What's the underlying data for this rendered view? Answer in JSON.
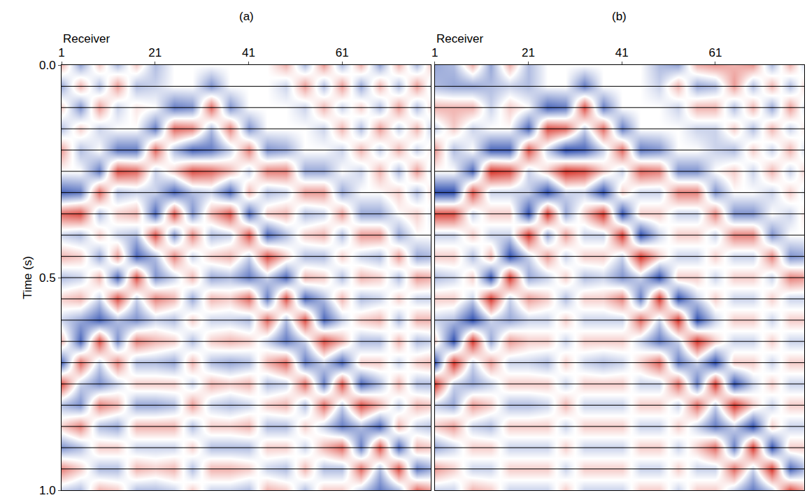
{
  "chart_data": [
    {
      "type": "heatmap",
      "title": "(a)",
      "x_label": "Receiver",
      "y_label": "Time (s)",
      "x": [
        1,
        5,
        9,
        13,
        17,
        21,
        25,
        29,
        33,
        37,
        41,
        45,
        49,
        53,
        57,
        61,
        65,
        69,
        73,
        77,
        81
      ],
      "y": [
        0,
        0.05,
        0.1,
        0.15,
        0.2,
        0.25,
        0.3,
        0.35,
        0.4,
        0.45,
        0.5,
        0.55,
        0.6,
        0.65,
        0.7,
        0.75,
        0.8,
        0.85,
        0.9,
        0.95,
        1
      ],
      "z": [
        [
          3,
          -4,
          2,
          -3,
          4,
          0,
          -7,
          6,
          -2,
          3,
          -3,
          2,
          -2,
          3,
          -7,
          7,
          -3,
          2,
          -5,
          5,
          -2
        ],
        [
          -4,
          3,
          -5,
          2,
          -3,
          0,
          -6,
          7,
          -3,
          2,
          -2,
          3,
          -4,
          -7,
          6,
          -2,
          -5,
          5,
          -3,
          2,
          -3
        ],
        [
          2,
          -3,
          4,
          -2,
          0,
          -6,
          6,
          -3,
          2,
          -4,
          3,
          -2,
          -7,
          7,
          -2,
          -5,
          5,
          -3,
          2,
          -3,
          3
        ],
        [
          -3,
          4,
          -2,
          0,
          -6,
          7,
          -3,
          2,
          -2,
          4,
          -7,
          7,
          -3,
          -5,
          5,
          -2,
          3,
          -4,
          2,
          -3,
          2
        ],
        [
          2,
          -3,
          1,
          0,
          -6,
          6,
          -2,
          3,
          -3,
          -7,
          7,
          -2,
          -5,
          5,
          -3,
          2,
          -4,
          3,
          -2,
          3,
          -3
        ],
        [
          -3,
          -2,
          0,
          -6,
          6,
          -2,
          -2,
          -7,
          7,
          -3,
          -5,
          5,
          -2,
          3,
          -3,
          2,
          -4,
          3,
          -2,
          2,
          -3
        ],
        [
          0,
          0,
          -6,
          6,
          -3,
          2,
          -7,
          7,
          -5,
          5,
          -2,
          3,
          -3,
          2,
          -4,
          2,
          -3,
          3,
          -2,
          3,
          -2
        ],
        [
          0,
          0,
          -5,
          5,
          -7,
          7,
          -3,
          -5,
          5,
          -2,
          3,
          -4,
          2,
          -3,
          3,
          -2,
          4,
          -3,
          2,
          -3,
          2
        ],
        [
          0,
          -5,
          6,
          -3,
          -6,
          6,
          -2,
          3,
          -3,
          2,
          -4,
          3,
          -2,
          2,
          -3,
          3,
          -2,
          2,
          -3,
          3,
          -2
        ],
        [
          0,
          0,
          -5,
          5,
          -2,
          3,
          -7,
          7,
          -2,
          3,
          -3,
          2,
          -2,
          3,
          -4,
          2,
          -3,
          2,
          -3,
          3,
          -2
        ],
        [
          0,
          0,
          0,
          -5,
          5,
          -2,
          3,
          -7,
          7,
          -2,
          -6,
          6,
          -3,
          2,
          -3,
          3,
          -2,
          3,
          -3,
          2,
          -3
        ],
        [
          0,
          0,
          0,
          0,
          -5,
          5,
          -3,
          2,
          -7,
          7,
          -2,
          -6,
          6,
          -2,
          3,
          -3,
          2,
          -3,
          2,
          -2,
          3
        ],
        [
          3,
          -2,
          0,
          0,
          -4,
          5,
          -2,
          3,
          -3,
          2,
          -7,
          7,
          -3,
          -6,
          6,
          -2,
          3,
          -3,
          2,
          -3,
          2
        ],
        [
          -3,
          4,
          -2,
          0,
          0,
          -4,
          4,
          -3,
          2,
          -3,
          3,
          -7,
          7,
          -2,
          -6,
          6,
          -3,
          2,
          -2,
          3,
          -3
        ],
        [
          4,
          -3,
          3,
          -2,
          0,
          -4,
          4,
          -2,
          3,
          -3,
          2,
          -3,
          -7,
          7,
          -2,
          -6,
          6,
          -2,
          3,
          -3,
          2
        ],
        [
          -3,
          4,
          -2,
          3,
          -2,
          0,
          -4,
          4,
          -3,
          2,
          -3,
          3,
          -2,
          3,
          -7,
          7,
          -2,
          -6,
          6,
          -3,
          2
        ],
        [
          3,
          -4,
          2,
          -3,
          3,
          -2,
          0,
          -4,
          4,
          -2,
          3,
          -3,
          2,
          -3,
          2,
          -7,
          7,
          -3,
          -6,
          6,
          -2
        ],
        [
          -4,
          3,
          -3,
          4,
          -2,
          3,
          0,
          -4,
          4,
          -3,
          2,
          -2,
          3,
          -3,
          2,
          -3,
          3,
          -7,
          7,
          -3,
          -6
        ],
        [
          3,
          -3,
          4,
          -2,
          3,
          -3,
          2,
          0,
          -4,
          4,
          -3,
          2,
          -3,
          3,
          -2,
          3,
          -2,
          3,
          -7,
          7,
          -3
        ],
        [
          -3,
          4,
          -3,
          3,
          -2,
          4,
          -3,
          2,
          0,
          -4,
          4,
          -2,
          3,
          -3,
          2,
          -3,
          3,
          -2,
          3,
          -6,
          6
        ],
        [
          4,
          -3,
          3,
          -4,
          2,
          -3,
          3,
          -2,
          0,
          -3,
          3,
          -2,
          3,
          -2,
          3,
          -3,
          2,
          -3,
          2,
          -3,
          3
        ]
      ],
      "zlim": [
        -8,
        8
      ],
      "colors": [
        "#2f4fb0",
        "#ffffff",
        "#d9362c"
      ],
      "xlim": [
        1,
        80
      ],
      "xticks": [
        1,
        21,
        41,
        61
      ],
      "ylim": [
        1,
        0
      ],
      "yticks": [
        {
          "value": 0,
          "label": "0.0"
        },
        {
          "value": 0.5,
          "label": "0.5"
        },
        {
          "value": 1,
          "label": "1.0"
        }
      ],
      "grid": true
    },
    {
      "type": "heatmap",
      "title": "(b)",
      "x_label": "Receiver",
      "x": [
        1,
        5,
        9,
        13,
        17,
        21,
        25,
        29,
        33,
        37,
        41,
        45,
        49,
        53,
        57,
        61,
        65,
        69,
        73,
        77,
        81
      ],
      "y": [
        0,
        0.05,
        0.1,
        0.15,
        0.2,
        0.25,
        0.3,
        0.35,
        0.4,
        0.45,
        0.5,
        0.55,
        0.6,
        0.65,
        0.7,
        0.75,
        0.8,
        0.85,
        0.9,
        0.95,
        1
      ],
      "z": [
        [
          -4,
          -3,
          3,
          -2,
          4,
          0,
          -8,
          7,
          -2,
          2,
          -3,
          2,
          -2,
          2,
          -8,
          8,
          -2,
          2,
          -4,
          4,
          -2
        ],
        [
          -3,
          -4,
          3,
          2,
          -3,
          0,
          -8,
          7,
          -2,
          2,
          -2,
          2,
          -3,
          -8,
          8,
          -2,
          -4,
          4,
          -2,
          2,
          -2
        ],
        [
          3,
          -4,
          3,
          -2,
          0,
          -7,
          7,
          -2,
          2,
          -3,
          2,
          -2,
          -8,
          8,
          -2,
          -4,
          4,
          -2,
          2,
          -2,
          3
        ],
        [
          -4,
          -3,
          -2,
          0,
          -7,
          8,
          -2,
          2,
          -2,
          3,
          -8,
          8,
          -2,
          -4,
          4,
          -2,
          2,
          -3,
          2,
          -2,
          2
        ],
        [
          3,
          -2,
          2,
          0,
          -7,
          7,
          -2,
          2,
          -2,
          -8,
          8,
          -2,
          -4,
          4,
          -2,
          2,
          -3,
          2,
          -2,
          2,
          -2
        ],
        [
          -3,
          -3,
          0,
          -7,
          7,
          -2,
          -2,
          -8,
          8,
          -2,
          -4,
          4,
          -2,
          2,
          -2,
          2,
          -3,
          2,
          -2,
          2,
          -2
        ],
        [
          0,
          0,
          -7,
          7,
          -2,
          2,
          -8,
          8,
          -4,
          4,
          -2,
          2,
          -2,
          2,
          -3,
          2,
          -2,
          2,
          -2,
          2,
          -2
        ],
        [
          0,
          0,
          -6,
          6,
          -8,
          8,
          -2,
          -4,
          4,
          -2,
          2,
          -3,
          2,
          -2,
          2,
          -2,
          3,
          -2,
          2,
          -2,
          2
        ],
        [
          0,
          -6,
          7,
          -2,
          -7,
          7,
          -2,
          2,
          -2,
          2,
          -3,
          2,
          -2,
          2,
          -2,
          2,
          -2,
          2,
          -2,
          2,
          -2
        ],
        [
          0,
          0,
          -6,
          6,
          -2,
          2,
          -8,
          8,
          -2,
          2,
          -2,
          2,
          -2,
          2,
          -3,
          2,
          -2,
          2,
          -2,
          2,
          -2
        ],
        [
          0,
          0,
          0,
          -6,
          6,
          -2,
          2,
          -8,
          8,
          -2,
          -5,
          5,
          -2,
          2,
          -2,
          2,
          -2,
          2,
          -2,
          2,
          -2
        ],
        [
          0,
          0,
          0,
          0,
          -6,
          6,
          -2,
          2,
          -8,
          8,
          -2,
          -6,
          6,
          -2,
          2,
          -2,
          2,
          -2,
          2,
          -2,
          2
        ],
        [
          -3,
          -2,
          0,
          0,
          -5,
          5,
          -2,
          2,
          -2,
          2,
          -8,
          8,
          -2,
          -6,
          6,
          -2,
          2,
          -2,
          2,
          -2,
          2
        ],
        [
          -4,
          3,
          -2,
          0,
          0,
          -5,
          5,
          -2,
          2,
          -2,
          2,
          -8,
          8,
          -2,
          -6,
          6,
          -2,
          2,
          -2,
          2,
          -2
        ],
        [
          3,
          -4,
          3,
          -2,
          0,
          -5,
          5,
          -2,
          2,
          -2,
          2,
          -2,
          -8,
          8,
          -2,
          -6,
          6,
          -2,
          2,
          -2,
          2
        ],
        [
          4,
          -3,
          3,
          -2,
          -2,
          0,
          -5,
          5,
          -2,
          2,
          -2,
          2,
          -2,
          2,
          -8,
          8,
          -2,
          -6,
          6,
          -2,
          2
        ],
        [
          3,
          4,
          -3,
          2,
          -3,
          2,
          0,
          -5,
          5,
          -2,
          2,
          -2,
          2,
          -2,
          2,
          -8,
          8,
          -2,
          -6,
          6,
          -2
        ],
        [
          4,
          -3,
          3,
          -3,
          2,
          -2,
          0,
          -5,
          5,
          -2,
          2,
          -2,
          2,
          -2,
          2,
          -2,
          2,
          -8,
          8,
          -2,
          -6
        ],
        [
          -3,
          3,
          -4,
          3,
          -2,
          3,
          -2,
          0,
          -5,
          5,
          -2,
          2,
          -2,
          2,
          -2,
          2,
          -2,
          2,
          -8,
          8,
          -2
        ],
        [
          3,
          -3,
          4,
          -2,
          3,
          -2,
          2,
          -2,
          0,
          -5,
          5,
          -2,
          2,
          -2,
          2,
          -2,
          2,
          -2,
          2,
          -7,
          7
        ],
        [
          -3,
          3,
          -3,
          2,
          -3,
          3,
          -2,
          2,
          0,
          -4,
          4,
          -2,
          2,
          -2,
          2,
          -2,
          2,
          -2,
          2,
          -2,
          2
        ]
      ],
      "zlim": [
        -8,
        8
      ],
      "colors": [
        "#2f4fb0",
        "#ffffff",
        "#d9362c"
      ],
      "xlim": [
        1,
        80
      ],
      "xticks": [
        1,
        21,
        41,
        61
      ],
      "ylim": [
        1,
        0
      ],
      "yticks": [
        {
          "value": 0,
          "label": "0.0"
        },
        {
          "value": 0.5,
          "label": "0.5"
        },
        {
          "value": 1,
          "label": "1.0"
        }
      ],
      "grid": true,
      "tick_labels": "x"
    }
  ]
}
